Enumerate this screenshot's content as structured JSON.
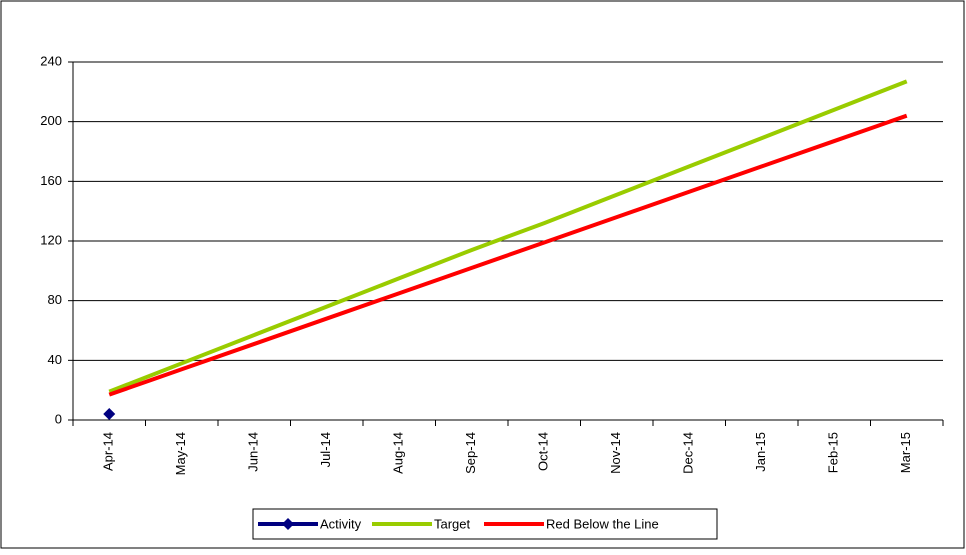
{
  "chart_data": {
    "type": "line",
    "categories": [
      "Apr-14",
      "May-14",
      "Jun-14",
      "Jul-14",
      "Aug-14",
      "Sep-14",
      "Oct-14",
      "Nov-14",
      "Dec-14",
      "Jan-15",
      "Feb-15",
      "Mar-15"
    ],
    "series": [
      {
        "name": "Activity",
        "color": "#000080",
        "marker": "diamond",
        "values": [
          4,
          null,
          null,
          null,
          null,
          null,
          null,
          null,
          null,
          null,
          null,
          null
        ]
      },
      {
        "name": "Target",
        "color": "#99CC00",
        "values": [
          19,
          38,
          57,
          76,
          95,
          114,
          132,
          151,
          170,
          189,
          208,
          227
        ]
      },
      {
        "name": "Red Below the Line",
        "color": "#FF0000",
        "values": [
          17,
          34,
          51,
          68,
          85,
          102,
          119,
          136,
          153,
          170,
          187,
          204
        ]
      }
    ],
    "ylim": [
      0,
      240
    ],
    "yticks": [
      0,
      40,
      80,
      120,
      160,
      200,
      240
    ],
    "grid": true,
    "legend": "bottom"
  }
}
